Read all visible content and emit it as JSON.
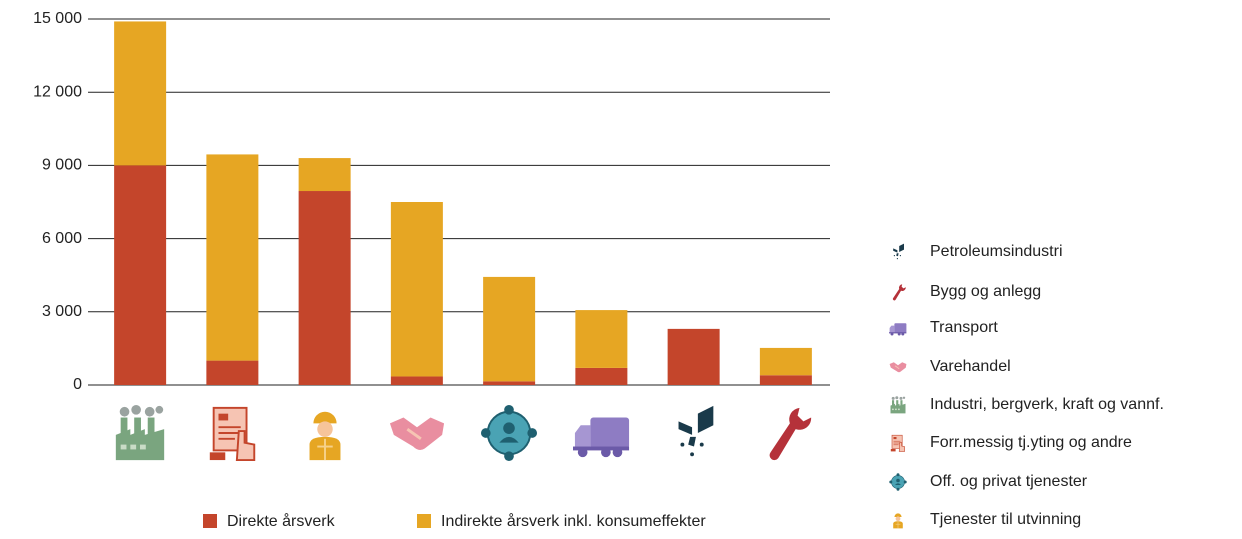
{
  "chart_data": {
    "type": "bar",
    "stacked": true,
    "categories": [
      null,
      null,
      null,
      null,
      null,
      null,
      null,
      null
    ],
    "series": [
      {
        "name": "Direkte årsverk",
        "color": "#c4452b",
        "values": [
          9000,
          1000,
          7950,
          350,
          150,
          700,
          2300,
          400
        ]
      },
      {
        "name": "Indirekte årsverk inkl. konsumeffekter",
        "color": "#e6a623",
        "values": [
          5900,
          8450,
          1350,
          7150,
          4280,
          2370,
          0,
          1120
        ]
      }
    ],
    "ylim": [
      0,
      15000
    ],
    "yticks": [
      {
        "value": 0,
        "label": "0"
      },
      {
        "value": 3000,
        "label": "3 000"
      },
      {
        "value": 6000,
        "label": "6 000"
      },
      {
        "value": 9000,
        "label": "9 000"
      },
      {
        "value": 12000,
        "label": "12 000"
      },
      {
        "value": 15000,
        "label": "15 000"
      }
    ],
    "grid": true,
    "icon_legend": [
      "Petroleumsindustri",
      "Bygg og anlegg",
      "Transport",
      "Varehandel",
      "Industri, bergverk, kraft og vannf.",
      "Forr.messig tj.yting og andre",
      "Off. og privat tjenester",
      "Tjenester til utvinning"
    ]
  }
}
